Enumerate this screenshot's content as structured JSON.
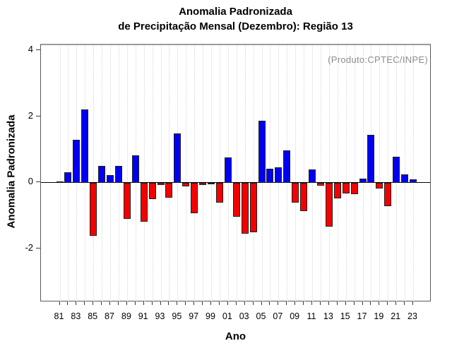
{
  "title": {
    "line1": "Anomalia Padronizada",
    "line2": "de Precipitação Mensal (Dezembro): Região 13"
  },
  "annotation": "(Produto:CPTEC/INPE)",
  "axes": {
    "ylabel": "Anomalia Padronizada",
    "xlabel": "Ano"
  },
  "colors": {
    "positive_bar": "#0000f2",
    "negative_bar": "#f50000",
    "bar_border": "#1f1f1f",
    "grid": "#d6d6d6",
    "annotation_gray": "#8d8d8d",
    "axis": "#3a3a3a"
  },
  "chart_data": {
    "type": "bar",
    "title": "Anomalia Padronizada de Precipitação Mensal (Dezembro): Região 13",
    "xlabel": "Ano",
    "ylabel": "Anomalia Padronizada",
    "annotation": "(Produto:CPTEC/INPE)",
    "categories": [
      "81",
      "82",
      "83",
      "84",
      "85",
      "86",
      "87",
      "88",
      "89",
      "90",
      "91",
      "92",
      "93",
      "94",
      "95",
      "96",
      "97",
      "98",
      "99",
      "00",
      "01",
      "02",
      "03",
      "04",
      "05",
      "06",
      "07",
      "08",
      "09",
      "10",
      "11",
      "12",
      "13",
      "14",
      "15",
      "16",
      "17",
      "18",
      "19",
      "20",
      "21",
      "22",
      "23"
    ],
    "values": [
      0.04,
      0.33,
      1.31,
      2.23,
      -1.61,
      0.51,
      0.24,
      0.51,
      -1.1,
      0.83,
      -1.18,
      -0.5,
      -0.06,
      -0.45,
      1.5,
      -0.11,
      -0.91,
      -0.06,
      -0.04,
      -0.6,
      0.78,
      -1.02,
      -1.53,
      -1.5,
      1.89,
      0.42,
      0.47,
      0.99,
      -0.59,
      -0.85,
      0.4,
      -0.09,
      -1.32,
      -0.48,
      -0.33,
      -0.34,
      0.13,
      1.46,
      -0.17,
      -0.7,
      0.8,
      0.26,
      0.1
    ],
    "x_tick_labels": [
      "81",
      "83",
      "85",
      "87",
      "89",
      "91",
      "93",
      "95",
      "97",
      "99",
      "01",
      "03",
      "05",
      "07",
      "09",
      "11",
      "13",
      "15",
      "17",
      "19",
      "21",
      "23"
    ],
    "y_ticks": [
      4,
      2,
      0,
      -2
    ],
    "ylim": [
      -3.6,
      4.2
    ],
    "grid": "vertical dotted line per year",
    "legend": null,
    "positive_color_meaning": "blue = positive anomaly",
    "negative_color_meaning": "red = negative anomaly"
  }
}
